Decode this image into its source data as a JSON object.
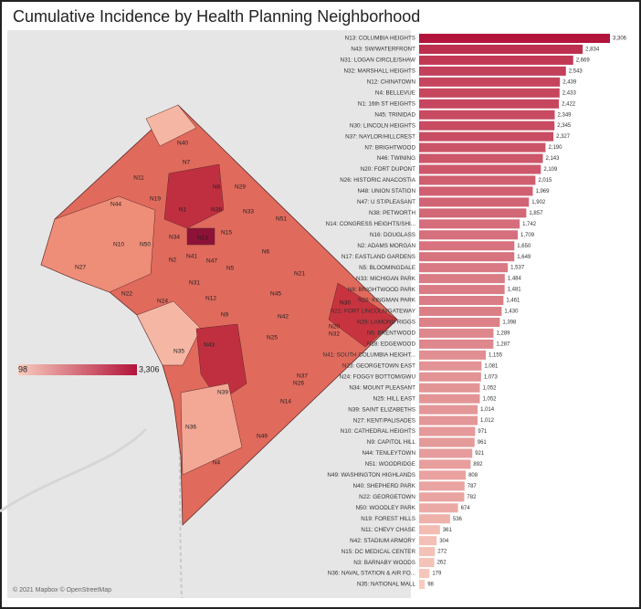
{
  "title": "Cumulative Incidence by Health Planning Neighborhood",
  "map": {
    "attribution": "© 2021 Mapbox © OpenStreetMap",
    "legend": {
      "min": 98,
      "max": {
        "value": 3306,
        "label": "3,306"
      }
    },
    "labels": [
      "N40",
      "N7",
      "N11",
      "N19",
      "N8",
      "N29",
      "N44",
      "N1",
      "N38",
      "N33",
      "N51",
      "N10",
      "N50",
      "N34",
      "N13",
      "N15",
      "N6",
      "N27",
      "N2",
      "N41",
      "N47",
      "N5",
      "N21",
      "N22",
      "N24",
      "N31",
      "N12",
      "N45",
      "N30",
      "N9",
      "N42",
      "N25",
      "N32",
      "N20",
      "N43",
      "N35",
      "N26",
      "N37",
      "N39",
      "N14",
      "N49",
      "N4",
      "N36"
    ]
  },
  "chart_data": {
    "type": "bar",
    "orientation": "horizontal",
    "color_low": "#f8cbbd",
    "color_high": "#b3143b",
    "categories": [
      "N13: COLUMBIA HEIGHTS",
      "N43: SW/WATERFRONT",
      "N31: LOGAN CIRCLE/SHAW",
      "N32: MARSHALL HEIGHTS",
      "N12: CHINATOWN",
      "N4: BELLEVUE",
      "N1: 16th ST HEIGHTS",
      "N45: TRINIDAD",
      "N30: LINCOLN HEIGHTS",
      "N37: NAYLOR/HILLCREST",
      "N7: BRIGHTWOOD",
      "N46: TWINING",
      "N20: FORT DUPONT",
      "N26: HISTORIC ANACOSTIA",
      "N48: UNION STATION",
      "N47: U ST/PLEASANT",
      "N38: PETWORTH",
      "N14: CONGRESS HEIGHTS/SHI...",
      "N16: DOUGLASS",
      "N2: ADAMS MORGAN",
      "N17: EASTLAND GARDENS",
      "N5: BLOOMINGDALE",
      "N33: MICHIGAN PARK",
      "N8: BRIGHTWOOD PARK",
      "N28: KINGMAN PARK",
      "N21: FORT LINCOLN/GATEWAY",
      "N29: LAMOND RIGGS",
      "N6: BRENTWOOD",
      "N18: EDGEWOOD",
      "N41: SOUTH COLUMBIA HEIGHT...",
      "N23: GEORGETOWN EAST",
      "N24: FOGGY BOTTOM/GWU",
      "N34: MOUNT PLEASANT",
      "N25: HILL EAST",
      "N39: SAINT ELIZABETHS",
      "N27: KENT/PALISADES",
      "N10: CATHEDRAL HEIGHTS",
      "N9: CAPITOL HILL",
      "N44: TENLEYTOWN",
      "N51: WOODRIDGE",
      "N49: WASHINGTON HIGHLANDS",
      "N40: SHEPHERD PARK",
      "N22: GEORGETOWN",
      "N50: WOODLEY PARK",
      "N19: FOREST HILLS",
      "N11: CHEVY CHASE",
      "N42: STADIUM ARMORY",
      "N15: DC MEDICAL CENTER",
      "N3: BARNABY WOODS",
      "N36: NAVAL STATION & AIR FO...",
      "N35: NATIONAL MALL"
    ],
    "values": [
      3306,
      2834,
      2669,
      2543,
      2439,
      2433,
      2422,
      2349,
      2345,
      2327,
      2190,
      2143,
      2109,
      2015,
      1969,
      1902,
      1857,
      1742,
      1709,
      1650,
      1649,
      1537,
      1484,
      1481,
      1461,
      1430,
      1398,
      1289,
      1287,
      1155,
      1081,
      1073,
      1052,
      1052,
      1014,
      1012,
      971,
      961,
      921,
      892,
      808,
      787,
      782,
      674,
      536,
      361,
      304,
      272,
      262,
      179,
      98
    ],
    "value_labels": [
      "3,306",
      "2,834",
      "2,669",
      "2,543",
      "2,439",
      "2,433",
      "2,422",
      "2,349",
      "2,345",
      "2,327",
      "2,190",
      "2,143",
      "2,109",
      "2,015",
      "1,969",
      "1,902",
      "1,857",
      "1,742",
      "1,709",
      "1,650",
      "1,649",
      "1,537",
      "1,484",
      "1,481",
      "1,461",
      "1,430",
      "1,398",
      "1,289",
      "1,287",
      "1,155",
      "1,081",
      "1,073",
      "1,052",
      "1,052",
      "1,014",
      "1,012",
      "971",
      "961",
      "921",
      "892",
      "808",
      "787",
      "782",
      "674",
      "536",
      "361",
      "304",
      "272",
      "262",
      "179",
      "98"
    ]
  }
}
